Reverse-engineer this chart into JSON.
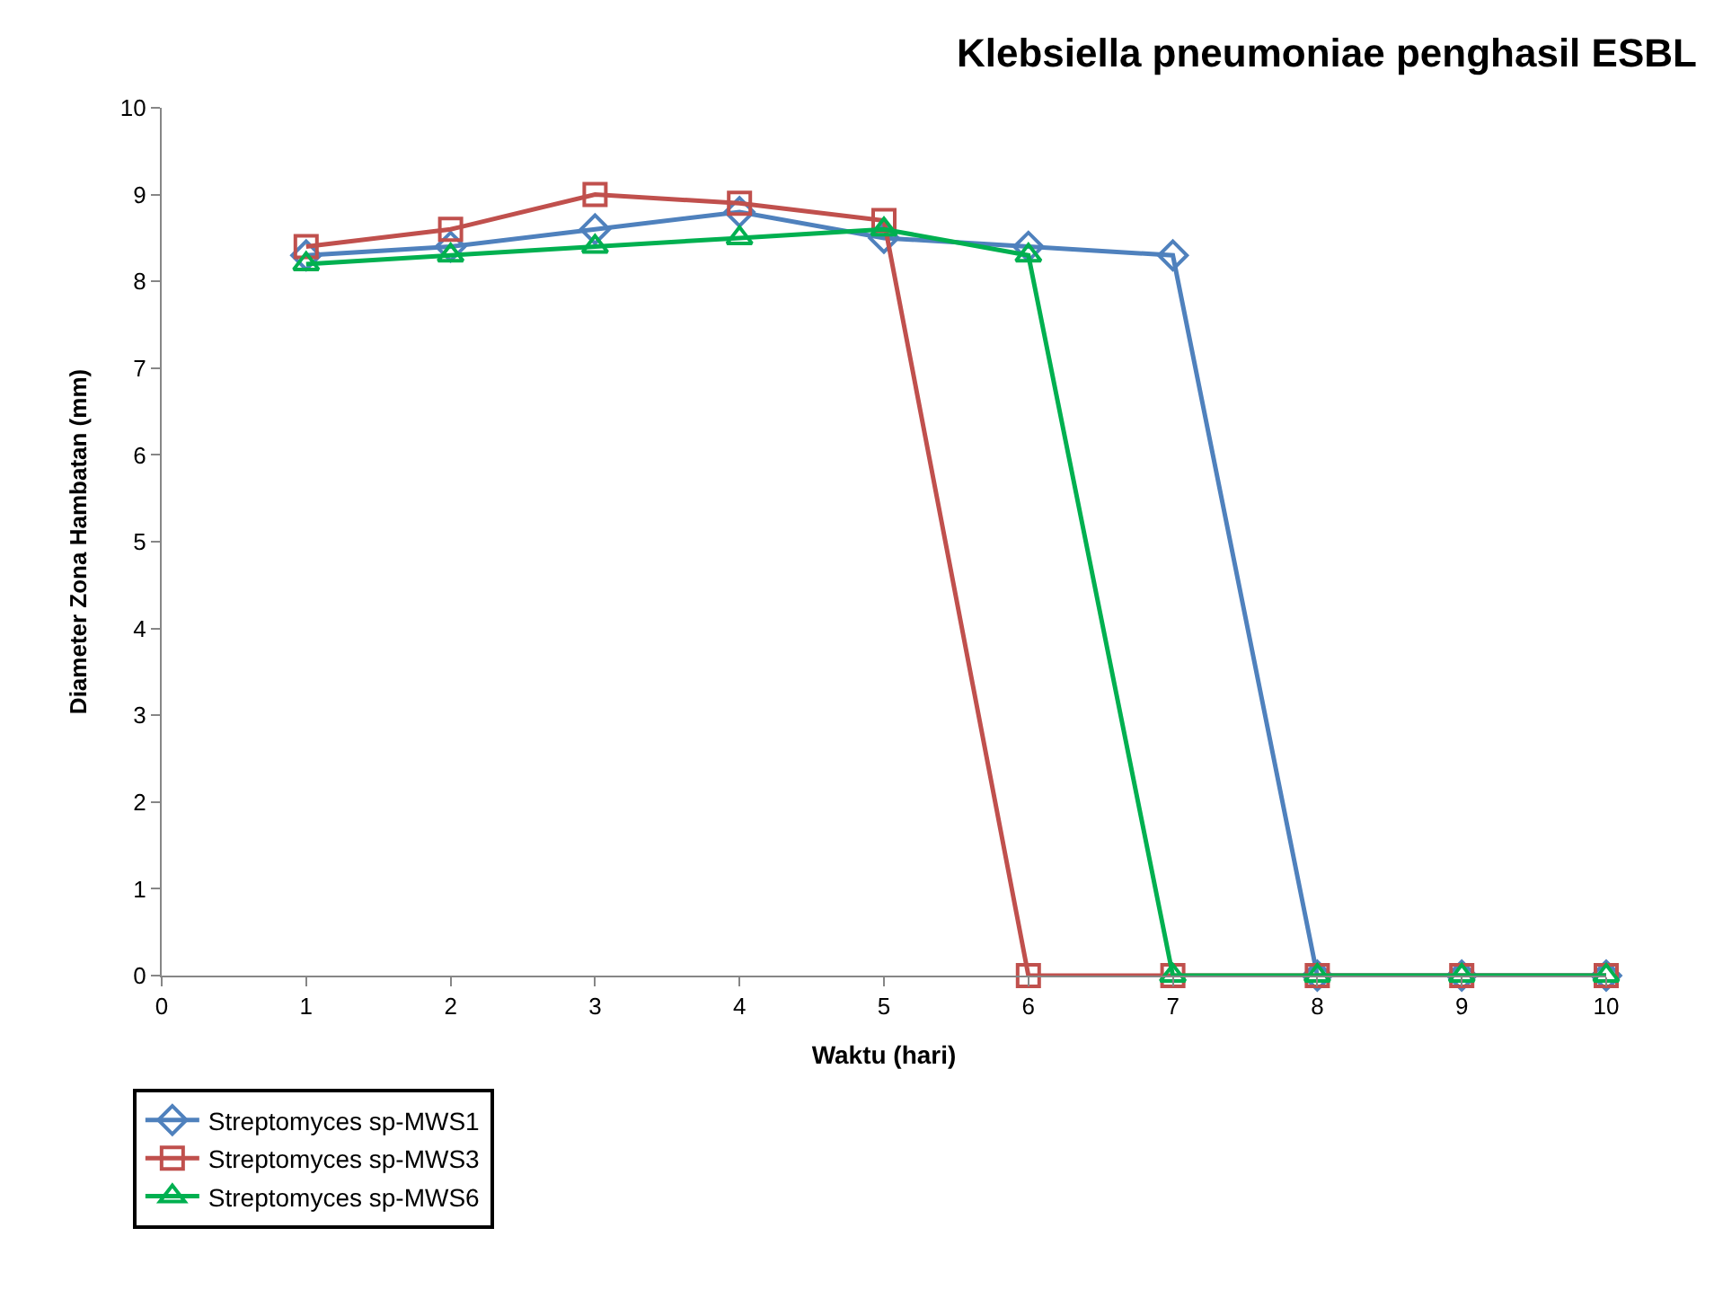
{
  "chart_data": {
    "type": "line",
    "title": "Klebsiella pneumoniae penghasil ESBL",
    "xlabel": "Waktu (hari)",
    "ylabel": "Diameter Zona Hambatan (mm)",
    "x": [
      1,
      2,
      3,
      4,
      5,
      6,
      7,
      8,
      9,
      10
    ],
    "series": [
      {
        "name": "Streptomyces sp-MWS1",
        "color": "#4f81bd",
        "marker": "diamond",
        "values": [
          8.3,
          8.4,
          8.6,
          8.8,
          8.5,
          8.4,
          8.3,
          0,
          0,
          0
        ]
      },
      {
        "name": "Streptomyces sp-MWS3",
        "color": "#c0504d",
        "marker": "square",
        "values": [
          8.4,
          8.6,
          9.0,
          8.9,
          8.7,
          0,
          0,
          0,
          0,
          0
        ]
      },
      {
        "name": "Streptomyces sp-MWS6",
        "color": "#00b050",
        "marker": "triangle",
        "values": [
          8.2,
          8.3,
          8.4,
          8.5,
          8.6,
          8.3,
          0,
          0,
          0,
          0
        ]
      }
    ],
    "xlim": [
      0,
      10
    ],
    "xticks": [
      0,
      1,
      2,
      3,
      4,
      5,
      6,
      7,
      8,
      9,
      10
    ],
    "ylim": [
      0,
      10
    ],
    "yticks": [
      0,
      1,
      2,
      3,
      4,
      5,
      6,
      7,
      8,
      9,
      10
    ],
    "legend": "bottom left",
    "line_style": "solid"
  }
}
